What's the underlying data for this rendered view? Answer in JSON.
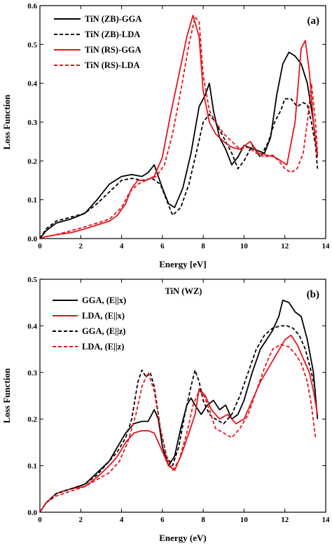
{
  "chart_data": [
    {
      "type": "line",
      "panel_label": "(a)",
      "title": "",
      "xlabel": "Energy [eV]",
      "ylabel": "Loss Function",
      "xlim": [
        0,
        14
      ],
      "ylim": [
        0,
        0.6
      ],
      "xticks": [
        "0",
        "2",
        "4",
        "6",
        "8",
        "10",
        "12",
        "14"
      ],
      "yticks": [
        "0.0",
        "0.1",
        "0.2",
        "0.3",
        "0.4",
        "0.5",
        "0.6"
      ],
      "legend_position": "top-left",
      "series": [
        {
          "name": "TiN (ZB)-GGA",
          "color": "#000000",
          "dash": "solid",
          "x": [
            0,
            0.3,
            0.8,
            1.5,
            2.2,
            2.8,
            3.4,
            4.0,
            4.5,
            5.0,
            5.3,
            5.6,
            5.8,
            6.0,
            6.3,
            6.6,
            7.0,
            7.4,
            7.8,
            8.1,
            8.3,
            8.5,
            8.8,
            9.1,
            9.4,
            9.7,
            10.0,
            10.5,
            11.0,
            11.3,
            11.6,
            11.9,
            12.2,
            12.5,
            12.8,
            13.1,
            13.4,
            13.6
          ],
          "y": [
            0.0,
            0.02,
            0.04,
            0.05,
            0.065,
            0.1,
            0.14,
            0.16,
            0.165,
            0.16,
            0.17,
            0.19,
            0.16,
            0.13,
            0.09,
            0.08,
            0.13,
            0.22,
            0.34,
            0.37,
            0.4,
            0.33,
            0.26,
            0.23,
            0.19,
            0.21,
            0.24,
            0.23,
            0.22,
            0.26,
            0.37,
            0.45,
            0.48,
            0.47,
            0.45,
            0.4,
            0.3,
            0.21
          ]
        },
        {
          "name": "TiN (ZB)-LDA",
          "color": "#000000",
          "dash": "dashed",
          "x": [
            0,
            0.3,
            0.8,
            1.5,
            2.2,
            2.8,
            3.4,
            4.0,
            4.5,
            5.0,
            5.5,
            5.9,
            6.2,
            6.5,
            6.9,
            7.3,
            7.7,
            8.0,
            8.3,
            8.6,
            9.0,
            9.4,
            9.7,
            10.0,
            10.4,
            10.8,
            11.2,
            11.5,
            11.8,
            12.0,
            12.3,
            12.6,
            12.9,
            13.1,
            13.3,
            13.5,
            13.6
          ],
          "y": [
            0.0,
            0.025,
            0.045,
            0.055,
            0.065,
            0.09,
            0.12,
            0.15,
            0.155,
            0.15,
            0.155,
            0.14,
            0.1,
            0.06,
            0.08,
            0.14,
            0.23,
            0.3,
            0.32,
            0.3,
            0.26,
            0.22,
            0.18,
            0.2,
            0.24,
            0.21,
            0.25,
            0.3,
            0.33,
            0.36,
            0.36,
            0.34,
            0.35,
            0.345,
            0.3,
            0.24,
            0.18
          ]
        },
        {
          "name": "TiN (RS)-GGA",
          "color": "#e8141c",
          "dash": "solid",
          "x": [
            0,
            0.3,
            0.8,
            1.5,
            2.2,
            2.8,
            3.4,
            3.8,
            4.2,
            4.5,
            4.8,
            5.2,
            5.6,
            6.0,
            6.4,
            6.8,
            7.2,
            7.5,
            7.8,
            8.0,
            8.3,
            8.6,
            9.0,
            9.4,
            9.8,
            10.3,
            10.7,
            11.1,
            11.5,
            11.8,
            12.1,
            12.5,
            12.8,
            13.0,
            13.2,
            13.4,
            13.6
          ],
          "y": [
            0.0,
            0.005,
            0.01,
            0.015,
            0.025,
            0.035,
            0.045,
            0.06,
            0.09,
            0.13,
            0.15,
            0.15,
            0.16,
            0.21,
            0.32,
            0.42,
            0.52,
            0.575,
            0.52,
            0.38,
            0.3,
            0.27,
            0.25,
            0.235,
            0.23,
            0.25,
            0.22,
            0.215,
            0.21,
            0.2,
            0.19,
            0.3,
            0.49,
            0.51,
            0.43,
            0.3,
            0.21
          ]
        },
        {
          "name": "TiN (RS)-LDA",
          "color": "#e8141c",
          "dash": "dashed",
          "x": [
            0,
            0.3,
            0.8,
            1.5,
            2.2,
            2.8,
            3.4,
            4.0,
            4.4,
            4.8,
            5.2,
            5.7,
            6.1,
            6.5,
            6.9,
            7.3,
            7.6,
            7.8,
            8.0,
            8.3,
            8.6,
            9.0,
            9.4,
            9.8,
            10.2,
            10.6,
            11.0,
            11.4,
            11.7,
            12.0,
            12.3,
            12.6,
            12.9,
            13.1,
            13.3,
            13.5,
            13.6
          ],
          "y": [
            0.0,
            0.005,
            0.01,
            0.02,
            0.03,
            0.04,
            0.05,
            0.08,
            0.12,
            0.14,
            0.15,
            0.16,
            0.19,
            0.27,
            0.38,
            0.5,
            0.57,
            0.56,
            0.42,
            0.33,
            0.3,
            0.27,
            0.25,
            0.23,
            0.235,
            0.22,
            0.21,
            0.215,
            0.2,
            0.18,
            0.17,
            0.18,
            0.22,
            0.3,
            0.4,
            0.3,
            0.22
          ]
        }
      ]
    },
    {
      "type": "line",
      "panel_label": "(b)",
      "title": "TiN (WZ)",
      "xlabel": "Energy (eV)",
      "ylabel": "Loss Function",
      "xlim": [
        0,
        14
      ],
      "ylim": [
        0,
        0.5
      ],
      "xticks": [
        "0",
        "2",
        "4",
        "6",
        "8",
        "10",
        "12",
        "14"
      ],
      "yticks": [
        "0.0",
        "0.1",
        "0.2",
        "0.3",
        "0.4",
        "0.5"
      ],
      "legend_position": "top-left",
      "series": [
        {
          "name": "GGA, (E||x)",
          "color": "#000000",
          "dash": "solid",
          "x": [
            0,
            0.3,
            0.8,
            1.5,
            2.2,
            2.8,
            3.4,
            3.8,
            4.2,
            4.6,
            5.0,
            5.3,
            5.6,
            5.8,
            6.0,
            6.3,
            6.6,
            6.9,
            7.2,
            7.4,
            7.6,
            7.9,
            8.2,
            8.5,
            8.8,
            9.1,
            9.4,
            9.7,
            10.0,
            10.4,
            10.8,
            11.1,
            11.4,
            11.7,
            11.9,
            12.2,
            12.5,
            12.8,
            13.1,
            13.4,
            13.6
          ],
          "y": [
            0.0,
            0.02,
            0.04,
            0.05,
            0.06,
            0.085,
            0.11,
            0.14,
            0.17,
            0.19,
            0.195,
            0.195,
            0.22,
            0.2,
            0.14,
            0.1,
            0.12,
            0.18,
            0.23,
            0.245,
            0.23,
            0.21,
            0.23,
            0.24,
            0.22,
            0.23,
            0.2,
            0.21,
            0.24,
            0.3,
            0.35,
            0.37,
            0.39,
            0.42,
            0.455,
            0.45,
            0.43,
            0.42,
            0.37,
            0.3,
            0.2
          ]
        },
        {
          "name": "LDA, (E||x)",
          "color": "#e8141c",
          "dash": "solid",
          "x": [
            0,
            0.3,
            0.8,
            1.5,
            2.2,
            2.8,
            3.4,
            3.8,
            4.2,
            4.6,
            5.0,
            5.3,
            5.6,
            6.0,
            6.3,
            6.6,
            6.9,
            7.3,
            7.6,
            7.8,
            8.1,
            8.4,
            8.8,
            9.2,
            9.6,
            10.0,
            10.4,
            10.8,
            11.2,
            11.6,
            12.0,
            12.3,
            12.6,
            12.9,
            13.2,
            13.4,
            13.6
          ],
          "y": [
            0.0,
            0.02,
            0.04,
            0.05,
            0.055,
            0.075,
            0.1,
            0.12,
            0.15,
            0.17,
            0.175,
            0.175,
            0.17,
            0.13,
            0.1,
            0.09,
            0.12,
            0.17,
            0.21,
            0.265,
            0.25,
            0.22,
            0.2,
            0.21,
            0.19,
            0.2,
            0.24,
            0.28,
            0.31,
            0.34,
            0.37,
            0.38,
            0.36,
            0.33,
            0.3,
            0.26,
            0.21
          ]
        },
        {
          "name": "GGA, (E||z)",
          "color": "#000000",
          "dash": "dashed",
          "x": [
            0,
            0.3,
            0.8,
            1.5,
            2.2,
            2.8,
            3.4,
            3.8,
            4.2,
            4.5,
            4.8,
            5.0,
            5.2,
            5.4,
            5.6,
            5.9,
            6.2,
            6.5,
            6.8,
            7.1,
            7.4,
            7.6,
            7.8,
            8.0,
            8.3,
            8.6,
            9.0,
            9.4,
            9.8,
            10.2,
            10.6,
            11.0,
            11.4,
            11.8,
            12.1,
            12.4,
            12.7,
            13.0,
            13.3,
            13.5
          ],
          "y": [
            0.0,
            0.02,
            0.04,
            0.05,
            0.06,
            0.08,
            0.11,
            0.13,
            0.16,
            0.2,
            0.28,
            0.305,
            0.29,
            0.3,
            0.27,
            0.18,
            0.12,
            0.1,
            0.14,
            0.21,
            0.27,
            0.305,
            0.28,
            0.24,
            0.21,
            0.2,
            0.19,
            0.21,
            0.25,
            0.3,
            0.35,
            0.38,
            0.395,
            0.4,
            0.4,
            0.395,
            0.38,
            0.35,
            0.3,
            0.26
          ]
        },
        {
          "name": "LDA, (E||z)",
          "color": "#e8141c",
          "dash": "dashed",
          "x": [
            0,
            0.3,
            0.8,
            1.5,
            2.2,
            2.8,
            3.4,
            3.9,
            4.3,
            4.7,
            5.0,
            5.3,
            5.6,
            5.9,
            6.2,
            6.5,
            6.8,
            7.2,
            7.5,
            7.8,
            8.0,
            8.3,
            8.6,
            9.0,
            9.4,
            9.8,
            10.2,
            10.6,
            11.0,
            11.4,
            11.8,
            12.2,
            12.5,
            12.8,
            13.1,
            13.3,
            13.5
          ],
          "y": [
            0.0,
            0.02,
            0.035,
            0.045,
            0.055,
            0.07,
            0.085,
            0.11,
            0.15,
            0.21,
            0.27,
            0.3,
            0.26,
            0.18,
            0.12,
            0.09,
            0.11,
            0.17,
            0.23,
            0.26,
            0.255,
            0.22,
            0.18,
            0.17,
            0.16,
            0.18,
            0.21,
            0.26,
            0.31,
            0.35,
            0.36,
            0.355,
            0.34,
            0.32,
            0.28,
            0.23,
            0.16
          ]
        }
      ]
    }
  ]
}
